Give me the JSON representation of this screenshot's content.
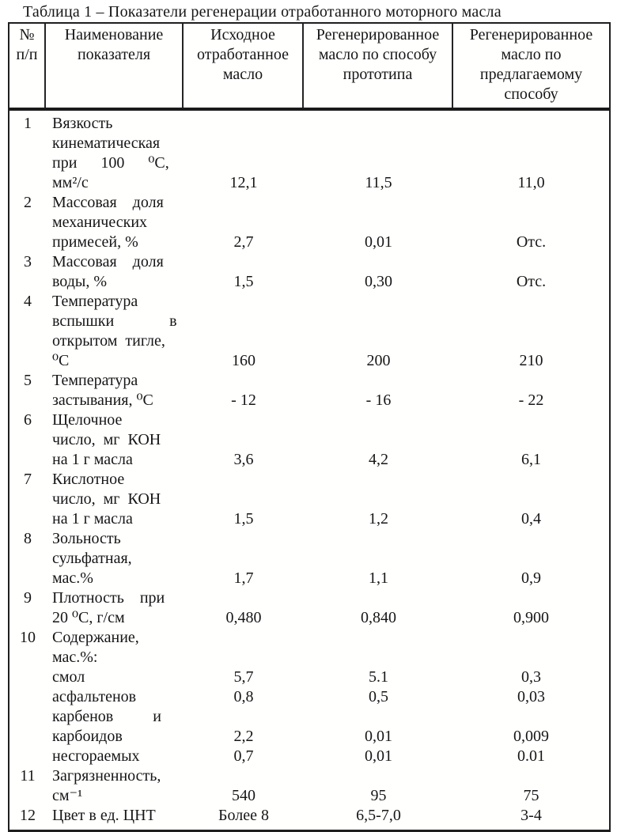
{
  "title": "Таблица 1 – Показатели регенерации отработанного моторного масла",
  "table": {
    "headers": [
      "№ п/п",
      "Наименование показателя",
      "Исходное отработанное масло",
      "Регенерированное масло по способу прототипа",
      "Регенерированное масло по предлагаемому способу"
    ],
    "lines": [
      [
        "1",
        "Вязкость",
        "",
        "",
        ""
      ],
      [
        "",
        "кинематическая",
        "",
        "",
        ""
      ],
      [
        "",
        "при      100      ⁰С,",
        "",
        "",
        ""
      ],
      [
        "",
        "мм²/с",
        "12,1",
        "11,5",
        "11,0"
      ],
      [
        "2",
        "Массовая    доля",
        "",
        "",
        ""
      ],
      [
        "",
        "механических",
        "",
        "",
        ""
      ],
      [
        "",
        "примесей, %",
        "2,7",
        "0,01",
        "Отс."
      ],
      [
        "3",
        "Массовая    доля",
        "",
        "",
        ""
      ],
      [
        "",
        "воды, %",
        "1,5",
        "0,30",
        "Отс."
      ],
      [
        "4",
        "Температура",
        "",
        "",
        ""
      ],
      [
        "",
        "вспышки              в",
        "",
        "",
        ""
      ],
      [
        "",
        "открытом  тигле,",
        "",
        "",
        ""
      ],
      [
        "",
        "⁰С",
        "160",
        "200",
        "210"
      ],
      [
        "5",
        "Температура",
        "",
        "",
        ""
      ],
      [
        "",
        "застывания, ⁰С",
        "- 12",
        "- 16",
        "- 22"
      ],
      [
        "6",
        "Щелочное",
        "",
        "",
        ""
      ],
      [
        "",
        "число,  мг  КОН",
        "",
        "",
        ""
      ],
      [
        "",
        "на 1 г масла",
        "3,6",
        "4,2",
        "6,1"
      ],
      [
        "7",
        "Кислотное",
        "",
        "",
        ""
      ],
      [
        "",
        "число,  мг  КОН",
        "",
        "",
        ""
      ],
      [
        "",
        "на 1 г масла",
        "1,5",
        "1,2",
        "0,4"
      ],
      [
        "8",
        "Зольность",
        "",
        "",
        ""
      ],
      [
        "",
        "сульфатная,",
        "",
        "",
        ""
      ],
      [
        "",
        "мас.%",
        "1,7",
        "1,1",
        "0,9"
      ],
      [
        "9",
        "Плотность    при",
        "",
        "",
        ""
      ],
      [
        "",
        "20 ⁰С, г/см",
        "0,480",
        "0,840",
        "0,900"
      ],
      [
        "10",
        "Содержание,",
        "",
        "",
        ""
      ],
      [
        "",
        "мас.%:",
        "",
        "",
        ""
      ],
      [
        "",
        "смол",
        "5,7",
        "5.1",
        "0,3"
      ],
      [
        "",
        "асфальтенов",
        "0,8",
        "0,5",
        "0,03"
      ],
      [
        "",
        "карбенов          и",
        "",
        "",
        ""
      ],
      [
        "",
        "карбоидов",
        "2,2",
        "0,01",
        "0,009"
      ],
      [
        "",
        "несгораемых",
        "0,7",
        "0,01",
        "0.01"
      ],
      [
        "11",
        "Загрязненность,",
        "",
        "",
        ""
      ],
      [
        "",
        "см⁻¹",
        "540",
        "95",
        "75"
      ],
      [
        "12",
        "Цвет в ед. ЦНТ",
        "Более 8",
        "6,5-7,0",
        "3-4"
      ]
    ]
  }
}
